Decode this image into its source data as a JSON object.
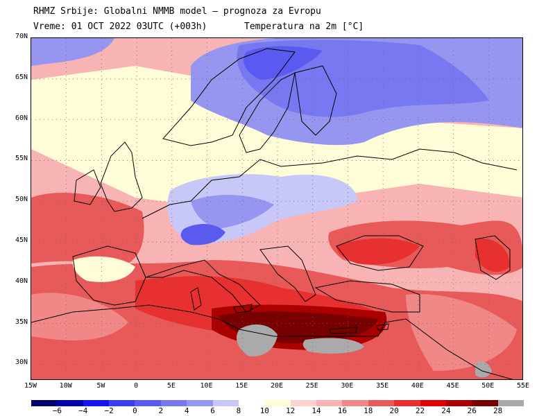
{
  "header": {
    "line1": "RHMZ Srbije: Globalni NMMB model — prognoza za Evropu",
    "line2_left": "Vreme: 01 OCT 2022 03UTC (+003h)",
    "line2_right": "Temperatura na 2m [°C]"
  },
  "map": {
    "lat_labels": [
      "70N",
      "65N",
      "60N",
      "55N",
      "50N",
      "45N",
      "40N",
      "35N",
      "30N"
    ],
    "lon_labels": [
      "15W",
      "10W",
      "5W",
      "0",
      "5E",
      "10E",
      "15E",
      "20E",
      "25E",
      "30E",
      "35E",
      "40E",
      "45E",
      "50E",
      "55E"
    ],
    "extent": {
      "lon_min": -15,
      "lon_max": 55,
      "lat_min": 28,
      "lat_max": 70
    }
  },
  "colorbar": {
    "colors": [
      "#00006e",
      "#0000a8",
      "#1414f0",
      "#3c3cf0",
      "#5a5af0",
      "#7878f0",
      "#9696f0",
      "#c8c8f8",
      "#ffffff",
      "#fffcd8",
      "#fcd2d2",
      "#f8b4b4",
      "#f08888",
      "#e85a5a",
      "#e83030",
      "#e00000",
      "#aa0000",
      "#780000",
      "#aaaaaa"
    ],
    "labels": [
      "−6",
      "−4",
      "−2",
      "0",
      "2",
      "4",
      "6",
      "8",
      "10",
      "12",
      "14",
      "16",
      "18",
      "20",
      "22",
      "24",
      "26",
      "28"
    ]
  },
  "field_colors": {
    "cold_deep": "#3c3cf0",
    "cold": "#7878f0",
    "cool": "#9696f0",
    "pale_blue": "#c8c8f8",
    "neutral": "#ffffff",
    "cream": "#fffcd8",
    "pink": "#fcd2d2",
    "light_red": "#f8b4b4",
    "medium_red": "#f08888",
    "red": "#e85a5a",
    "bright_red": "#e83030",
    "dark_red": "#aa0000",
    "darkest_red": "#780000",
    "gray": "#aaaaaa",
    "coast": "#000000"
  }
}
